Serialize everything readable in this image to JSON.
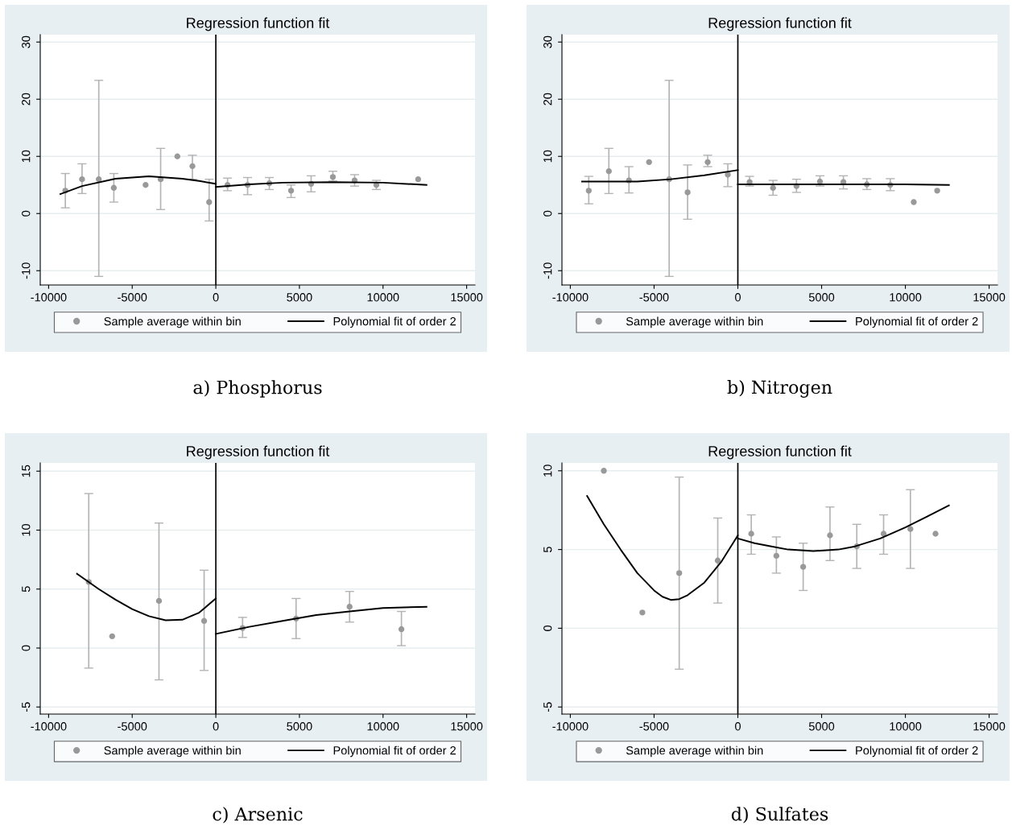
{
  "chart_data": [
    {
      "type": "scatter",
      "title": "Regression function fit",
      "annotations": [
        "a) Phosphorus"
      ],
      "xlim": [
        -10500,
        15500
      ],
      "xticks": [
        -10000,
        -5000,
        0,
        5000,
        10000,
        15000
      ],
      "ylim": [
        -12.5,
        31.3
      ],
      "yticks": [
        -10,
        0,
        10,
        20,
        30
      ],
      "grid": "y",
      "legend": "bottom",
      "marker": "circle",
      "ref_lines": [
        {
          "axis": "x",
          "value": 0,
          "color": "#000000"
        }
      ],
      "series": [
        {
          "name": "Sample average within bin",
          "color": "#999999",
          "x": [
            -9000,
            -8000,
            -7000,
            -6100,
            -4200,
            -3300,
            -2300,
            -1400,
            -400,
            700,
            1900,
            3200,
            4500,
            5700,
            7000,
            8300,
            9600,
            12100
          ],
          "values": [
            4,
            6,
            6,
            4.5,
            5,
            6,
            10,
            8.3,
            2,
            5,
            5,
            5.3,
            4,
            5.2,
            6.4,
            5.8,
            5,
            6
          ],
          "errors": [
            [
              1,
              7
            ],
            [
              3.5,
              8.7
            ],
            [
              -11,
              23.3
            ],
            [
              2,
              7
            ],
            null,
            [
              0.7,
              11.4
            ],
            null,
            [
              6,
              10.2
            ],
            [
              -1.3,
              6
            ],
            [
              4,
              6.2
            ],
            [
              3.3,
              6.3
            ],
            [
              4.2,
              6.3
            ],
            [
              2.8,
              5
            ],
            [
              3.8,
              6.6
            ],
            [
              5.7,
              7.4
            ],
            [
              4.8,
              6.8
            ],
            [
              4.2,
              5.8
            ],
            null
          ]
        },
        {
          "name": "Polynomial fit of order 2",
          "type": "line",
          "color": "#000000",
          "marker": "none",
          "x": [
            -9300,
            -8000,
            -6000,
            -4000,
            -2000,
            -1000,
            0
          ],
          "values": [
            3.4,
            4.8,
            6.1,
            6.5,
            6.1,
            5.7,
            5.2
          ]
        },
        {
          "type": "line",
          "color": "#000000",
          "marker": "none",
          "x": [
            0,
            2000,
            4000,
            7000,
            10000,
            12600
          ],
          "values": [
            4.65,
            5.1,
            5.4,
            5.5,
            5.4,
            5.0
          ]
        }
      ]
    },
    {
      "type": "scatter",
      "title": "Regression function fit",
      "annotations": [
        "b) Nitrogen"
      ],
      "xlim": [
        -10500,
        15500
      ],
      "xticks": [
        -10000,
        -5000,
        0,
        5000,
        10000,
        15000
      ],
      "ylim": [
        -12.5,
        31.3
      ],
      "yticks": [
        -10,
        0,
        10,
        20,
        30
      ],
      "grid": "y",
      "legend": "bottom",
      "marker": "circle",
      "ref_lines": [
        {
          "axis": "x",
          "value": 0,
          "color": "#000000"
        }
      ],
      "series": [
        {
          "name": "Sample average within bin",
          "color": "#999999",
          "x": [
            -8900,
            -7700,
            -6500,
            -5300,
            -4100,
            -3000,
            -1800,
            -600,
            700,
            2100,
            3500,
            4900,
            6300,
            7700,
            9100,
            10500,
            11900
          ],
          "values": [
            4,
            7.4,
            5.8,
            9,
            6,
            3.7,
            9,
            6.8,
            5.5,
            4.5,
            4.8,
            5.6,
            5.5,
            5.1,
            5,
            2,
            4
          ],
          "errors": [
            [
              1.7,
              6.5
            ],
            [
              3.5,
              11.4
            ],
            [
              3.6,
              8.2
            ],
            null,
            [
              -11,
              23.3
            ],
            [
              -1,
              8.5
            ],
            [
              8.2,
              10.2
            ],
            [
              4.7,
              8.7
            ],
            [
              4.8,
              6.5
            ],
            [
              3.2,
              5.8
            ],
            [
              3.7,
              6
            ],
            [
              4.8,
              6.6
            ],
            [
              4.3,
              6.6
            ],
            [
              4.2,
              6.1
            ],
            [
              4,
              6.1
            ],
            null,
            null
          ]
        },
        {
          "name": "Polynomial fit of order 2",
          "type": "line",
          "color": "#000000",
          "marker": "none",
          "x": [
            -9300,
            -6000,
            -4000,
            -2000,
            0
          ],
          "values": [
            5.6,
            5.6,
            6,
            6.7,
            7.6
          ]
        },
        {
          "type": "line",
          "color": "#000000",
          "marker": "none",
          "x": [
            0,
            5000,
            10000,
            12600
          ],
          "values": [
            5.1,
            5.1,
            5.1,
            5.0
          ]
        }
      ]
    },
    {
      "type": "scatter",
      "title": "Regression function fit",
      "annotations": [
        "c) Arsenic"
      ],
      "xlim": [
        -10500,
        15500
      ],
      "xticks": [
        -10000,
        -5000,
        0,
        5000,
        10000,
        15000
      ],
      "ylim": [
        -5.6,
        15.7
      ],
      "yticks": [
        -5,
        0,
        5,
        10,
        15
      ],
      "grid": "y",
      "legend": "bottom",
      "marker": "circle",
      "ref_lines": [
        {
          "axis": "x",
          "value": 0,
          "color": "#000000"
        }
      ],
      "series": [
        {
          "name": "Sample average within bin",
          "color": "#999999",
          "x": [
            -7600,
            -6200,
            -3400,
            -700,
            1600,
            4800,
            8000,
            11100
          ],
          "values": [
            5.6,
            1,
            4,
            2.3,
            1.7,
            2.5,
            3.5,
            1.6
          ],
          "errors": [
            [
              -1.7,
              13.1
            ],
            null,
            [
              -2.7,
              10.6
            ],
            [
              -1.9,
              6.6
            ],
            [
              0.9,
              2.6
            ],
            [
              0.8,
              4.2
            ],
            [
              2.2,
              4.8
            ],
            [
              0.2,
              3.1
            ]
          ]
        },
        {
          "name": "Polynomial fit of order 2",
          "type": "line",
          "color": "#000000",
          "marker": "none",
          "x": [
            -8300,
            -7000,
            -6000,
            -5000,
            -4000,
            -3000,
            -2000,
            -1000,
            0
          ],
          "values": [
            6.3,
            5.0,
            4.1,
            3.3,
            2.7,
            2.35,
            2.4,
            3.0,
            4.2
          ]
        },
        {
          "type": "line",
          "color": "#000000",
          "marker": "none",
          "x": [
            0,
            2000,
            4000,
            6000,
            8000,
            10000,
            12600
          ],
          "values": [
            1.2,
            1.8,
            2.3,
            2.8,
            3.1,
            3.4,
            3.5
          ]
        }
      ]
    },
    {
      "type": "scatter",
      "title": "Regression function fit",
      "annotations": [
        "d) Sulfates"
      ],
      "xlim": [
        -10500,
        15500
      ],
      "xticks": [
        -10000,
        -5000,
        0,
        5000,
        10000,
        15000
      ],
      "ylim": [
        -5.45,
        10.5
      ],
      "yticks": [
        -5,
        0,
        5,
        10
      ],
      "grid": "y",
      "legend": "bottom",
      "marker": "circle",
      "ref_lines": [
        {
          "axis": "x",
          "value": 0,
          "color": "#000000"
        }
      ],
      "series": [
        {
          "name": "Sample average within bin",
          "color": "#999999",
          "x": [
            -8000,
            -5700,
            -3500,
            -1200,
            800,
            2300,
            3900,
            5500,
            7100,
            8700,
            10300,
            11800
          ],
          "values": [
            10,
            1,
            3.5,
            4.3,
            6,
            4.6,
            3.9,
            5.9,
            5.2,
            6,
            6.3,
            6
          ],
          "errors": [
            null,
            null,
            [
              -2.6,
              9.6
            ],
            [
              1.6,
              7
            ],
            [
              4.7,
              7.2
            ],
            [
              3.5,
              5.8
            ],
            [
              2.4,
              5.4
            ],
            [
              4.3,
              7.7
            ],
            [
              3.8,
              6.6
            ],
            [
              4.7,
              7.2
            ],
            [
              3.8,
              8.8
            ],
            null
          ]
        },
        {
          "name": "Polynomial fit of order 2",
          "type": "line",
          "color": "#000000",
          "marker": "none",
          "x": [
            -9000,
            -8000,
            -7000,
            -6000,
            -5000,
            -4500,
            -4000,
            -3500,
            -3000,
            -2000,
            -1000,
            0
          ],
          "values": [
            8.4,
            6.6,
            5.0,
            3.5,
            2.4,
            2.0,
            1.8,
            1.85,
            2.1,
            2.9,
            4.2,
            5.9
          ]
        },
        {
          "type": "line",
          "color": "#000000",
          "marker": "none",
          "x": [
            0,
            1000,
            2000,
            3000,
            4500,
            6000,
            7000,
            8500,
            10000,
            11300,
            12600
          ],
          "values": [
            5.7,
            5.4,
            5.2,
            5.0,
            4.9,
            5.0,
            5.2,
            5.7,
            6.4,
            7.1,
            7.8
          ]
        }
      ]
    }
  ]
}
